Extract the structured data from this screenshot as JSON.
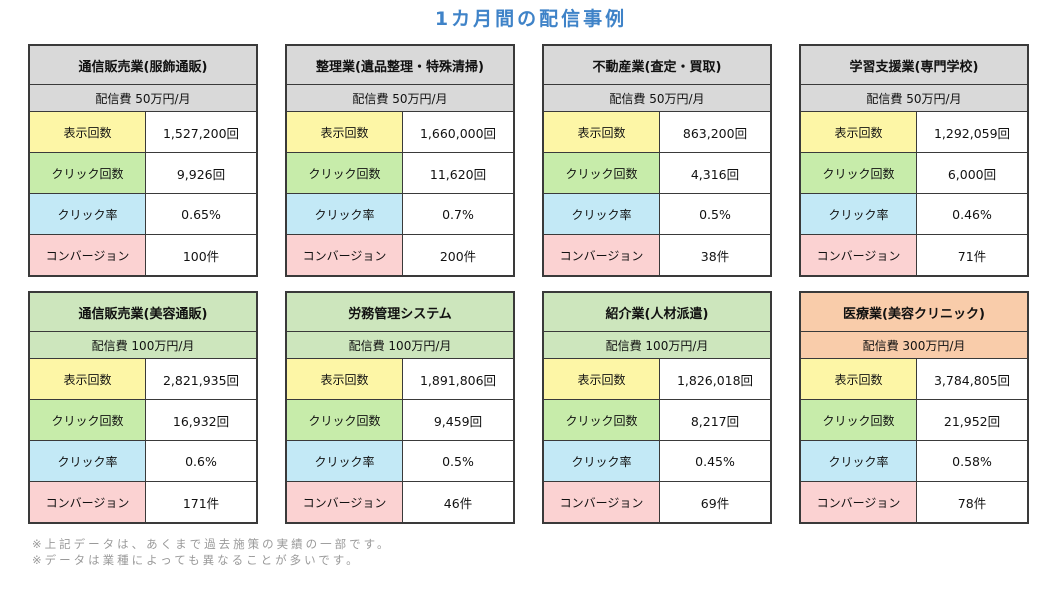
{
  "title": "1カ月間の配信事例",
  "labels": {
    "impressions": "表示回数",
    "clicks": "クリック回数",
    "ctr": "クリック率",
    "conversions": "コンバージョン"
  },
  "cards": [
    {
      "name": "通信販売業(服飾通販)",
      "fee": "配信費 50万円/月",
      "impressions": "1,527,200回",
      "clicks": "9,926回",
      "ctr": "0.65%",
      "conversions": "100件"
    },
    {
      "name": "整理業(遺品整理・特殊清掃)",
      "fee": "配信費 50万円/月",
      "impressions": "1,660,000回",
      "clicks": "11,620回",
      "ctr": "0.7%",
      "conversions": "200件"
    },
    {
      "name": "不動産業(査定・買取)",
      "fee": "配信費 50万円/月",
      "impressions": "863,200回",
      "clicks": "4,316回",
      "ctr": "0.5%",
      "conversions": "38件"
    },
    {
      "name": "学習支援業(専門学校)",
      "fee": "配信費 50万円/月",
      "impressions": "1,292,059回",
      "clicks": "6,000回",
      "ctr": "0.46%",
      "conversions": "71件"
    },
    {
      "name": "通信販売業(美容通販)",
      "fee": "配信費 100万円/月",
      "impressions": "2,821,935回",
      "clicks": "16,932回",
      "ctr": "0.6%",
      "conversions": "171件"
    },
    {
      "name": "労務管理システム",
      "fee": "配信費 100万円/月",
      "impressions": "1,891,806回",
      "clicks": "9,459回",
      "ctr": "0.5%",
      "conversions": "46件"
    },
    {
      "name": "紹介業(人材派遣)",
      "fee": "配信費 100万円/月",
      "impressions": "1,826,018回",
      "clicks": "8,217回",
      "ctr": "0.45%",
      "conversions": "69件"
    },
    {
      "name": "医療業(美容クリニック)",
      "fee": "配信費 300万円/月",
      "impressions": "3,784,805回",
      "clicks": "21,952回",
      "ctr": "0.58%",
      "conversions": "78件"
    }
  ],
  "colors": {
    "title": "#3f83c8",
    "header_gray": "#d9d9d9",
    "header_green": "#cde6bd",
    "header_orange": "#f9ccaa",
    "label_impressions": "#fdf6a6",
    "label_clicks": "#c7ecaa",
    "label_ctr": "#c3e9f6",
    "label_conversions": "#fbd2d2"
  },
  "notes": [
    "※上記データは、あくまで過去施策の実績の一部です。",
    "※データは業種によっても異なることが多いです。"
  ]
}
